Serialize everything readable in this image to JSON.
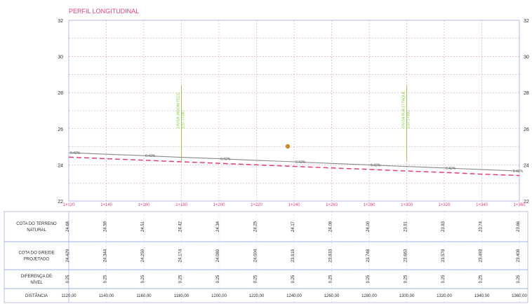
{
  "chart_data": {
    "type": "line",
    "title": "PERFIL LONGITUDINAL",
    "stations": [
      "1+120",
      "1+140",
      "1+160",
      "1+180",
      "1+200",
      "1+220",
      "1+240",
      "1+260",
      "1+280",
      "1+300",
      "1+320",
      "1+340",
      "1+360"
    ],
    "x": [
      1120,
      1140,
      1160,
      1180,
      1200,
      1220,
      1240,
      1260,
      1280,
      1300,
      1320,
      1340,
      1360
    ],
    "ylim": [
      22,
      32
    ],
    "yticks": [
      22,
      24,
      26,
      28,
      30,
      32
    ],
    "grid": true,
    "series": [
      {
        "key": "terrain",
        "values": [
          24.68,
          24.59,
          24.51,
          24.42,
          24.34,
          24.25,
          24.17,
          24.08,
          24.0,
          23.91,
          23.83,
          23.74,
          23.66
        ],
        "color": "#8a8a8a"
      },
      {
        "key": "grade",
        "values": [
          24.43,
          24.34,
          24.26,
          24.17,
          24.09,
          24.0,
          23.92,
          23.83,
          23.75,
          23.66,
          23.58,
          23.49,
          23.41
        ],
        "color": "#e0407a"
      }
    ],
    "slope_labels": [
      "0.42%",
      "0.42%",
      "0.42%",
      "0.42%",
      "0.42%",
      "0.42%",
      "0.42%",
      "0.42%"
    ],
    "vertical_annotations": [
      {
        "x": 1180,
        "lines": [
          "DIVISA JARDIM FELIZ",
          "EST 1+180"
        ],
        "color": "#8cc63f"
      },
      {
        "x": 1300,
        "lines": [
          "DIVISA RUA 17 TAQUE",
          "EST 1+300"
        ],
        "color": "#8cc63f"
      }
    ],
    "table": {
      "row_labels": [
        [
          "COTA DO TERRENO",
          "NATURAL"
        ],
        [
          "COTA DO GREIDE",
          "PROJETADO"
        ],
        [
          "DIFERENÇA DE",
          "NÍVEL"
        ],
        [
          "DISTÂNCIA"
        ]
      ],
      "terrain": [
        "24.68",
        "24.59",
        "24.51",
        "24.42",
        "24.34",
        "24.25",
        "24.17",
        "24.08",
        "24.00",
        "23.91",
        "23.83",
        "23.74",
        "23.66"
      ],
      "grade": [
        "24.429",
        "24.344",
        "24.259",
        "24.174",
        "24.089",
        "24.004",
        "23.919",
        "23.833",
        "23.748",
        "23.663",
        "23.578",
        "23.493",
        "23.408"
      ],
      "diff": [
        "0.25",
        "0.25",
        "0.25",
        "0.25",
        "0.25",
        "0.25",
        "0.25",
        "0.25",
        "0.25",
        "0.25",
        "0.25",
        "0.25",
        "0.25"
      ],
      "distance": [
        "1120,00",
        "1140,00",
        "1160,00",
        "1180,00",
        "1200,00",
        "1220,00",
        "1240,00",
        "1260,00",
        "1280,00",
        "1300,00",
        "1320,00",
        "1340,00",
        "1360,00"
      ]
    },
    "colors": {
      "title": "#e0407a",
      "axis_text": "#2a2a2a",
      "grid": "#d8a0c8",
      "frame": "#9aa8e0",
      "station_text": "#e0407a"
    }
  }
}
